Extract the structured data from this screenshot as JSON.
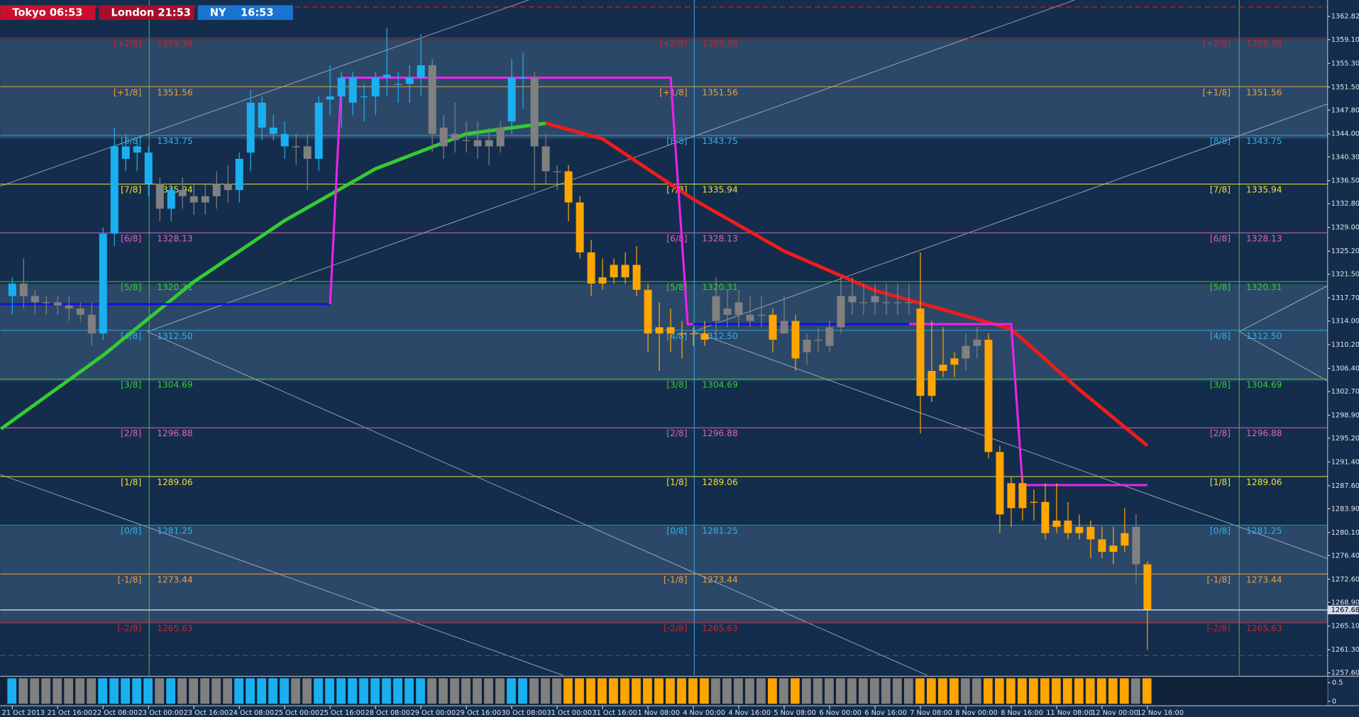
{
  "chart_data": {
    "type": "candlestick",
    "sessions": [
      {
        "label": "Tokyo 06:53",
        "color": "#c8102e"
      },
      {
        "label": "London 21:53",
        "color": "#a50e2d"
      },
      {
        "label": "NY    16:53",
        "color": "#1a73d0"
      }
    ],
    "ylim": [
      1257.6,
      1362.82
    ],
    "yticks": [
      1362.82,
      {
        "value": 1359.1,
        "label": "1359.10"
      },
      {
        "value": 1355.3,
        "label": "1355.30"
      },
      {
        "value": 1351.5,
        "label": "1351.50"
      },
      {
        "value": 1347.8,
        "label": "1347.80"
      },
      {
        "value": 1344,
        "label": "1344.00"
      },
      {
        "value": 1340.3,
        "label": "1340.30"
      },
      {
        "value": 1336.5,
        "label": "1336.50"
      },
      {
        "value": 1332.8,
        "label": "1332.80"
      },
      {
        "value": 1329,
        "label": "1329.00"
      },
      {
        "value": 1325.2,
        "label": "1325.20"
      },
      {
        "value": 1321.5,
        "label": "1321.50"
      },
      {
        "value": 1317.7,
        "label": "1317.70"
      },
      {
        "value": 1314,
        "label": "1314.00"
      },
      {
        "value": 1310.2,
        "label": "1310.20"
      },
      {
        "value": 1306.4,
        "label": "1306.40"
      },
      {
        "value": 1302.7,
        "label": "1302.70"
      },
      {
        "value": 1298.9,
        "label": "1298.90"
      },
      {
        "value": 1295.2,
        "label": "1295.20"
      },
      {
        "value": 1291.4,
        "label": "1291.40"
      },
      {
        "value": 1287.6,
        "label": "1287.60"
      },
      {
        "value": 1283.9,
        "label": "1283.90"
      },
      {
        "value": 1280.1,
        "label": "1280.10"
      },
      {
        "value": 1276.4,
        "label": "1276.40"
      },
      {
        "value": 1272.6,
        "label": "1272.60"
      },
      {
        "value": 1268.9,
        "label": "1268.90"
      },
      {
        "value": 1265.1,
        "label": "1265.10"
      },
      {
        "value": 1261.3,
        "label": "1261.30"
      },
      {
        "value": 1257.6,
        "label": "1257.60"
      }
    ],
    "current_price": 1267.68,
    "xticks": [
      {
        "value": 0,
        "label": "21 Oct 2013"
      },
      {
        "value": 4,
        "label": "21 Oct 16:00"
      },
      {
        "value": 8,
        "label": "22 Oct 08:00"
      },
      {
        "value": 12,
        "label": "23 Oct 00:00"
      },
      {
        "value": 16,
        "label": "23 Oct 16:00"
      },
      {
        "value": 20,
        "label": "24 Oct 08:00"
      },
      {
        "value": 24,
        "label": "25 Oct 00:00"
      },
      {
        "value": 28,
        "label": "25 Oct 16:00"
      },
      {
        "value": 32,
        "label": "28 Oct 08:00"
      },
      {
        "value": 36,
        "label": "29 Oct 00:00"
      },
      {
        "value": 40,
        "label": "29 Oct 16:00"
      },
      {
        "value": 44,
        "label": "30 Oct 08:00"
      },
      {
        "value": 48,
        "label": "31 Oct 00:00"
      },
      {
        "value": 52,
        "label": "31 Oct 16:00"
      },
      {
        "value": 56,
        "label": "1 Nov 08:00"
      },
      {
        "value": 60,
        "label": "4 Nov 00:00"
      },
      {
        "value": 64,
        "label": "4 Nov 16:00"
      },
      {
        "value": 68,
        "label": "5 Nov 08:00"
      },
      {
        "value": 72,
        "label": "6 Nov 00:00"
      },
      {
        "value": 76,
        "label": "6 Nov 16:00"
      },
      {
        "value": 80,
        "label": "7 Nov 08:00"
      },
      {
        "value": 84,
        "label": "8 Nov 00:00"
      },
      {
        "value": 88,
        "label": "8 Nov 16:00"
      },
      {
        "value": 92,
        "label": "11 Nov 08:00"
      },
      {
        "value": 96,
        "label": "12 Nov 00:00"
      },
      {
        "value": 100,
        "label": "12 Nov 16:00"
      }
    ],
    "ohlc": [
      [
        1318,
        1321,
        1315,
        1320
      ],
      [
        1320,
        1324,
        1316,
        1318
      ],
      [
        1318,
        1319,
        1315,
        1317
      ],
      [
        1317,
        1318,
        1315,
        1317
      ],
      [
        1317,
        1318,
        1315,
        1316.5
      ],
      [
        1316.5,
        1318,
        1314,
        1316
      ],
      [
        1316,
        1317,
        1314,
        1315
      ],
      [
        1315,
        1317,
        1310,
        1312
      ],
      [
        1312,
        1329,
        1311,
        1328
      ],
      [
        1328,
        1345,
        1326,
        1342
      ],
      [
        1340,
        1344,
        1338,
        1342
      ],
      [
        1342,
        1343,
        1338,
        1341
      ],
      [
        1336,
        1342,
        1334,
        1341
      ],
      [
        1336,
        1337,
        1330,
        1332
      ],
      [
        1332,
        1336,
        1330,
        1335
      ],
      [
        1335,
        1337,
        1332,
        1334
      ],
      [
        1334,
        1336,
        1331,
        1333
      ],
      [
        1333,
        1336,
        1331,
        1334
      ],
      [
        1334,
        1338,
        1332,
        1336
      ],
      [
        1336,
        1339,
        1333,
        1335
      ],
      [
        1335,
        1341,
        1333,
        1340
      ],
      [
        1341,
        1351,
        1338,
        1349
      ],
      [
        1345,
        1350,
        1343,
        1349
      ],
      [
        1345,
        1347,
        1343,
        1344
      ],
      [
        1344,
        1346,
        1340,
        1342
      ],
      [
        1342,
        1344,
        1339,
        1342
      ],
      [
        1342,
        1344,
        1335,
        1340
      ],
      [
        1340,
        1350,
        1338,
        1349
      ],
      [
        1349.5,
        1355,
        1347,
        1350
      ],
      [
        1350,
        1354,
        1345,
        1353
      ],
      [
        1353,
        1354,
        1347,
        1349
      ],
      [
        1350,
        1352,
        1346,
        1350
      ],
      [
        1350,
        1354,
        1347,
        1353
      ],
      [
        1353,
        1361,
        1350,
        1353.5
      ],
      [
        1352,
        1354,
        1349,
        1352
      ],
      [
        1352,
        1355,
        1349,
        1353
      ],
      [
        1353,
        1360,
        1350,
        1355
      ],
      [
        1355,
        1356,
        1341,
        1344
      ],
      [
        1345,
        1347,
        1340,
        1342
      ],
      [
        1344,
        1349,
        1341,
        1343
      ],
      [
        1343,
        1346,
        1341,
        1343
      ],
      [
        1343,
        1346,
        1340,
        1342
      ],
      [
        1343,
        1345,
        1339,
        1342
      ],
      [
        1342,
        1346,
        1341,
        1345
      ],
      [
        1346,
        1356,
        1344,
        1353
      ],
      [
        1353,
        1357,
        1348,
        1353
      ],
      [
        1353,
        1354,
        1335,
        1342
      ],
      [
        1342,
        1344,
        1336,
        1338
      ],
      [
        1338,
        1339,
        1335,
        1338
      ],
      [
        1338,
        1339,
        1330,
        1333
      ],
      [
        1333,
        1334,
        1324,
        1325
      ],
      [
        1325,
        1327,
        1318,
        1320
      ],
      [
        1320,
        1324,
        1319,
        1321
      ],
      [
        1321,
        1324,
        1320,
        1323
      ],
      [
        1323,
        1325,
        1320,
        1321
      ],
      [
        1323,
        1326,
        1318,
        1319
      ],
      [
        1319,
        1320,
        1309,
        1312
      ],
      [
        1313,
        1317,
        1306,
        1312
      ],
      [
        1313,
        1316,
        1309,
        1312
      ],
      [
        1312,
        1314,
        1308,
        1312
      ],
      [
        1312,
        1313,
        1310,
        1312
      ],
      [
        1312,
        1314,
        1310,
        1311
      ],
      [
        1314,
        1321,
        1312,
        1318
      ],
      [
        1315,
        1319,
        1313,
        1316
      ],
      [
        1317,
        1319,
        1313,
        1315
      ],
      [
        1315,
        1318,
        1313,
        1314
      ],
      [
        1315,
        1318,
        1313,
        1315
      ],
      [
        1315,
        1316,
        1309,
        1311
      ],
      [
        1314,
        1318,
        1312,
        1312
      ],
      [
        1314,
        1315,
        1306,
        1308
      ],
      [
        1309,
        1312,
        1307,
        1311
      ],
      [
        1311,
        1313,
        1309,
        1311
      ],
      [
        1310,
        1314,
        1309,
        1313
      ],
      [
        1313,
        1321,
        1312,
        1318
      ],
      [
        1317,
        1321,
        1315,
        1318
      ],
      [
        1317,
        1320,
        1315,
        1317
      ],
      [
        1318,
        1320,
        1315,
        1317
      ],
      [
        1317,
        1320,
        1315,
        1317
      ],
      [
        1317,
        1320,
        1315,
        1317
      ],
      [
        1317,
        1320,
        1315,
        1317
      ],
      [
        1316,
        1325,
        1296,
        1302
      ],
      [
        1306,
        1314,
        1301,
        1302
      ],
      [
        1307,
        1313,
        1305,
        1306
      ],
      [
        1307,
        1309,
        1305,
        1308
      ],
      [
        1308,
        1312,
        1306,
        1310
      ],
      [
        1310,
        1313,
        1308,
        1311
      ],
      [
        1311,
        1312,
        1292,
        1293
      ],
      [
        1293,
        1294,
        1280,
        1283
      ],
      [
        1288,
        1289,
        1281,
        1284
      ],
      [
        1288,
        1289,
        1282,
        1284
      ],
      [
        1285,
        1287,
        1282,
        1285
      ],
      [
        1285,
        1288,
        1279,
        1280
      ],
      [
        1282,
        1288,
        1280,
        1281
      ],
      [
        1282,
        1285,
        1279,
        1280
      ],
      [
        1281,
        1283,
        1279,
        1280
      ],
      [
        1281,
        1282,
        1276,
        1279
      ],
      [
        1279,
        1281,
        1276,
        1277
      ],
      [
        1278,
        1281,
        1275,
        1277
      ],
      [
        1278,
        1284,
        1277,
        1280
      ],
      [
        1281,
        1283,
        1272,
        1275
      ],
      [
        1275,
        1275.5,
        1261.3,
        1267.68
      ]
    ],
    "colors": [
      "#1ab0f0",
      "#808080",
      "#808080",
      "#808080",
      "#808080",
      "#808080",
      "#808080",
      "#808080",
      "#1ab0f0",
      "#1ab0f0",
      "#1ab0f0",
      "#1ab0f0",
      "#1ab0f0",
      "#808080",
      "#1ab0f0",
      "#808080",
      "#808080",
      "#808080",
      "#808080",
      "#808080",
      "#1ab0f0",
      "#1ab0f0",
      "#1ab0f0",
      "#1ab0f0",
      "#1ab0f0",
      "#808080",
      "#808080",
      "#1ab0f0",
      "#1ab0f0",
      "#1ab0f0",
      "#1ab0f0",
      "#1ab0f0",
      "#1ab0f0",
      "#1ab0f0",
      "#1ab0f0",
      "#1ab0f0",
      "#1ab0f0",
      "#808080",
      "#808080",
      "#808080",
      "#808080",
      "#808080",
      "#808080",
      "#808080",
      "#1ab0f0",
      "#1ab0f0",
      "#808080",
      "#808080",
      "#808080",
      "#ffa500",
      "#ffa500",
      "#ffa500",
      "#ffa500",
      "#ffa500",
      "#ffa500",
      "#ffa500",
      "#ffa500",
      "#ffa500",
      "#ffa500",
      "#ffa500",
      "#ffa500",
      "#ffa500",
      "#808080",
      "#808080",
      "#808080",
      "#808080",
      "#808080",
      "#ffa500",
      "#808080",
      "#ffa500",
      "#808080",
      "#808080",
      "#808080",
      "#808080",
      "#808080",
      "#808080",
      "#808080",
      "#808080",
      "#808080",
      "#808080",
      "#ffa500",
      "#ffa500",
      "#ffa500",
      "#ffa500",
      "#808080",
      "#808080",
      "#ffa500",
      "#ffa500",
      "#ffa500",
      "#ffa500",
      "#ffa500",
      "#ffa500",
      "#ffa500",
      "#ffa500",
      "#ffa500",
      "#ffa500",
      "#ffa500",
      "#ffa500",
      "#ffa500",
      "#808080",
      "#ffa500"
    ],
    "levels": [
      {
        "label": "[+2/8]",
        "value": 1359.38,
        "color": "#d0202a"
      },
      {
        "label": "[+1/8]",
        "value": 1351.56,
        "color": "#e8a040"
      },
      {
        "label": "[8/8]",
        "value": 1343.75,
        "color": "#30b0e8"
      },
      {
        "label": "[7/8]",
        "value": 1335.94,
        "color": "#e8e040"
      },
      {
        "label": "[6/8]",
        "value": 1328.13,
        "color": "#e060c0"
      },
      {
        "label": "[5/8]",
        "value": 1320.31,
        "color": "#30d030"
      },
      {
        "label": "[4/8]",
        "value": 1312.5,
        "value_label": "1312.50",
        "color": "#30b0e8"
      },
      {
        "label": "[3/8]",
        "value": 1304.69,
        "color": "#30d030"
      },
      {
        "label": "[2/8]",
        "value": 1296.88,
        "color": "#e060c0"
      },
      {
        "label": "[1/8]",
        "value": 1289.06,
        "color": "#e8e040"
      },
      {
        "label": "[0/8]",
        "value": 1281.25,
        "color": "#30b0e8"
      },
      {
        "label": "[-1/8]",
        "value": 1273.44,
        "color": "#e8a040"
      },
      {
        "label": "[-2/8]",
        "value": 1265.63,
        "color": "#d0202a"
      }
    ],
    "lines": [
      {
        "color": "#33cc33",
        "points": [
          [
            -1,
            1296.7
          ],
          [
            8,
            1308.5
          ],
          [
            16,
            1320.3
          ],
          [
            24,
            1330.1
          ],
          [
            32,
            1338.4
          ],
          [
            40,
            1344
          ],
          [
            47,
            1345.7
          ]
        ]
      },
      {
        "color": "#ee1c1c",
        "points": [
          [
            47,
            1345.7
          ],
          [
            52,
            1343.2
          ],
          [
            60,
            1333.5
          ],
          [
            68,
            1325.2
          ],
          [
            76,
            1318.9
          ],
          [
            84,
            1314.8
          ],
          [
            88,
            1312.7
          ],
          [
            94,
            1303
          ],
          [
            100,
            1294
          ]
        ]
      },
      {
        "color": "#1010e0",
        "points": [
          [
            -1,
            1316.7
          ],
          [
            28,
            1316.7
          ]
        ]
      },
      {
        "color": "#1010e0",
        "points": [
          [
            60,
            1313.5
          ],
          [
            79,
            1313.5
          ]
        ]
      },
      {
        "color": "#ee22ee",
        "points": [
          [
            28,
            1316.7
          ],
          [
            29,
            1353
          ],
          [
            58,
            1353
          ],
          [
            59.5,
            1313.5
          ],
          [
            60,
            1313.5
          ]
        ]
      },
      {
        "color": "#ee22ee",
        "points": [
          [
            79,
            1313.5
          ],
          [
            88,
            1313.5
          ],
          [
            89,
            1287.7
          ],
          [
            100,
            1287.7
          ]
        ]
      }
    ],
    "indicator": {
      "ylim": [
        -0.12,
        0.67
      ],
      "yticks": [
        0.5,
        0
      ]
    }
  }
}
